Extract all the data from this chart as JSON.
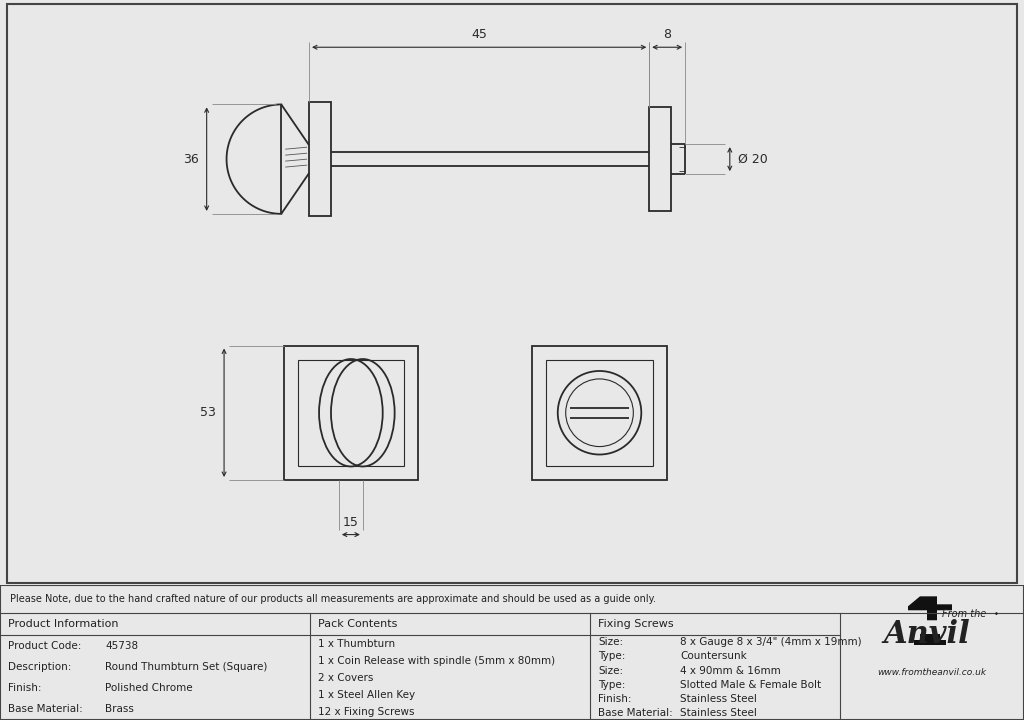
{
  "bg_color": "#e8e8e8",
  "drawing_bg": "#f5f5f5",
  "line_color": "#2a2a2a",
  "note_text": "Please Note, due to the hand crafted nature of our products all measurements are approximate and should be used as a guide only.",
  "product_info": {
    "header": "Product Information",
    "rows": [
      [
        "Product Code:",
        "45738"
      ],
      [
        "Description:",
        "Round Thumbturn Set (Square)"
      ],
      [
        "Finish:",
        "Polished Chrome"
      ],
      [
        "Base Material:",
        "Brass"
      ]
    ]
  },
  "pack_contents": {
    "header": "Pack Contents",
    "items": [
      "1 x Thumbturn",
      "1 x Coin Release with spindle (5mm x 80mm)",
      "2 x Covers",
      "1 x Steel Allen Key",
      "12 x Fixing Screws"
    ]
  },
  "fixing_screws": {
    "header": "Fixing Screws",
    "rows": [
      [
        "Size:",
        "8 x Gauge 8 x 3/4\" (4mm x 19mm)"
      ],
      [
        "Type:",
        "Countersunk"
      ],
      [
        "Size:",
        "4 x 90mm & 16mm"
      ],
      [
        "Type:",
        "Slotted Male & Female Bolt"
      ],
      [
        "Finish:",
        "Stainless Steel"
      ],
      [
        "Base Material:",
        "Stainless Steel"
      ]
    ]
  },
  "anvil_url": "www.fromtheanvil.co.uk"
}
